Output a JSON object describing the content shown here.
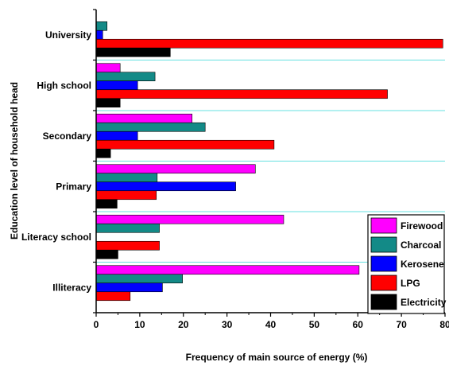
{
  "chart_data": {
    "type": "bar",
    "orientation": "horizontal",
    "categories": [
      "University",
      "High school",
      "Secondary",
      "Primary",
      "Literacy school",
      "Illiteracy"
    ],
    "series": [
      {
        "name": "Firewood",
        "color": "#ff00ff",
        "values": [
          0,
          5.5,
          22,
          36.5,
          43,
          60.3
        ]
      },
      {
        "name": "Charcoal",
        "color": "#138a87",
        "values": [
          2.5,
          13.5,
          25,
          14,
          14.5,
          19.8
        ]
      },
      {
        "name": "Kerosene",
        "color": "#0000ff",
        "values": [
          1.5,
          9.5,
          9.5,
          32,
          0,
          15.2
        ]
      },
      {
        "name": "LPG",
        "color": "#ff0000",
        "values": [
          79.5,
          66.8,
          40.8,
          13.8,
          14.5,
          7.8
        ]
      },
      {
        "name": "Electricity",
        "color": "#000000",
        "values": [
          17,
          5.5,
          3.3,
          4.8,
          5,
          0
        ]
      }
    ],
    "xlabel": "Frequency of main source of energy (%)",
    "ylabel": "Education level of household head",
    "xlim": [
      0,
      80
    ],
    "xticks": [
      "0",
      "10",
      "20",
      "30",
      "40",
      "50",
      "60",
      "70",
      "80"
    ],
    "separator_color": "#66e0e0",
    "legend_position": "bottom-right"
  }
}
